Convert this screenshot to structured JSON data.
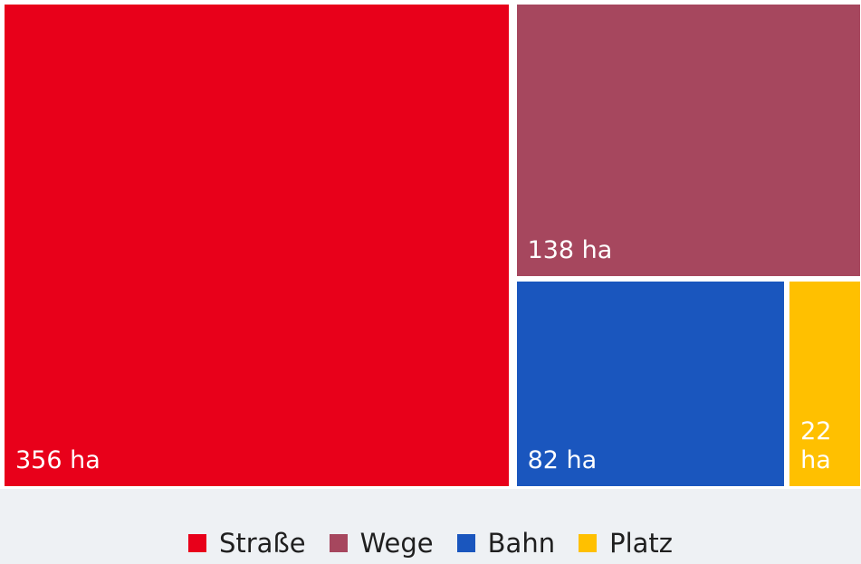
{
  "chart_data": {
    "type": "treemap",
    "unit": "ha",
    "items": [
      {
        "name": "Straße",
        "value": 356,
        "label": "356 ha",
        "color": "#e8001a"
      },
      {
        "name": "Wege",
        "value": 138,
        "label": "138 ha",
        "color": "#a6475e"
      },
      {
        "name": "Bahn",
        "value": 82,
        "label": "82 ha",
        "color": "#1a56be"
      },
      {
        "name": "Platz",
        "value": 22,
        "label": "22 ha",
        "color": "#ffc000"
      }
    ],
    "legend_position": "bottom-center"
  }
}
